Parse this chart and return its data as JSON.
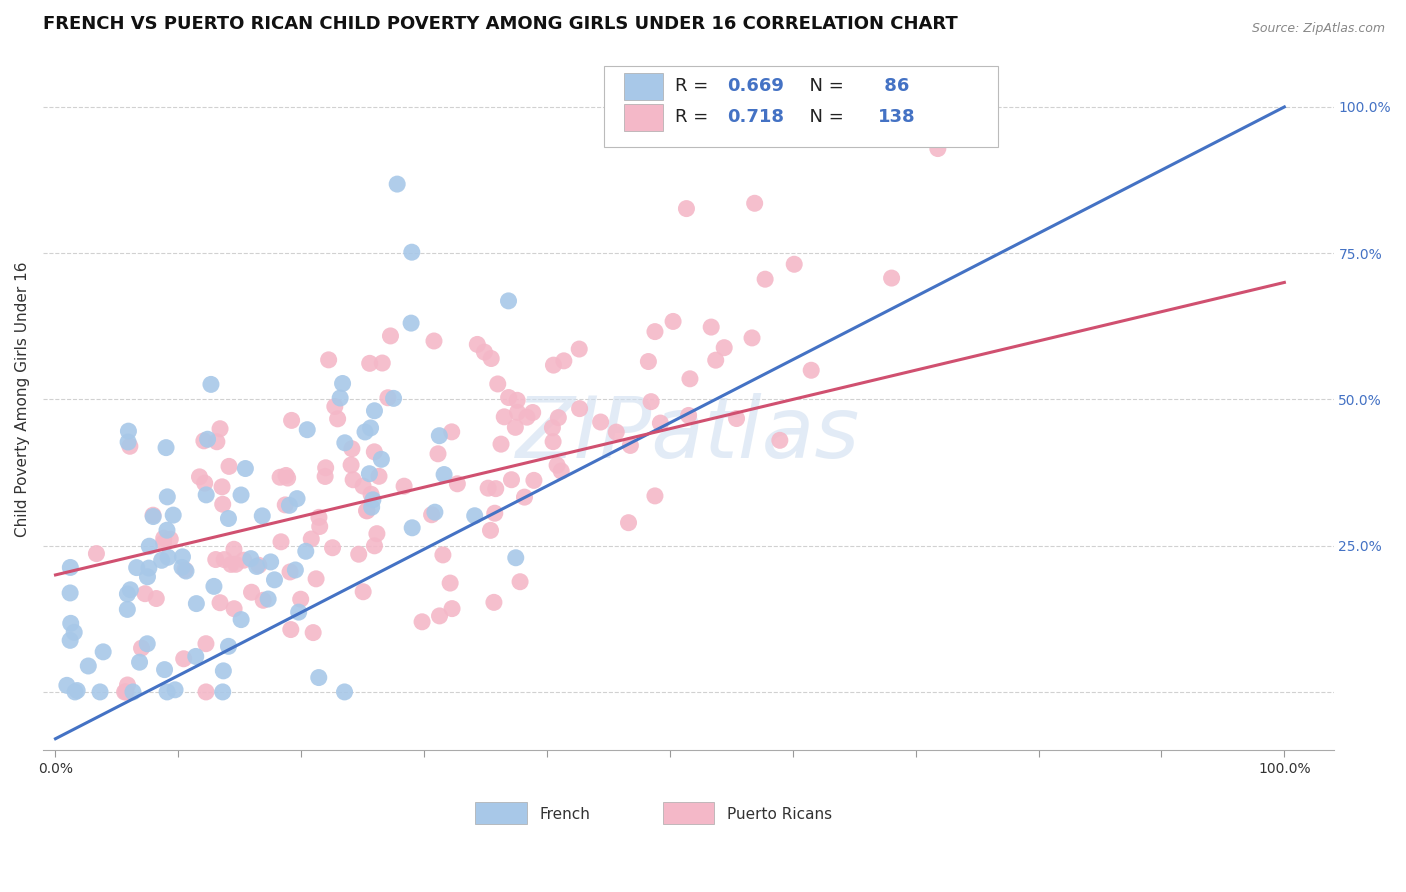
{
  "title": "FRENCH VS PUERTO RICAN CHILD POVERTY AMONG GIRLS UNDER 16 CORRELATION CHART",
  "source": "Source: ZipAtlas.com",
  "ylabel": "Child Poverty Among Girls Under 16",
  "french_R": "0.669",
  "french_N": "86",
  "puerto_rican_R": "0.718",
  "puerto_rican_N": "138",
  "french_color": "#a8c8e8",
  "french_line_color": "#4472C4",
  "puerto_rican_color": "#f4b8c8",
  "puerto_rican_line_color": "#d05070",
  "french_line_x0": 0.0,
  "french_line_y0": -0.08,
  "french_line_x1": 1.0,
  "french_line_y1": 1.0,
  "pr_line_x0": 0.0,
  "pr_line_y0": 0.2,
  "pr_line_x1": 1.0,
  "pr_line_y1": 0.7,
  "xlim_min": -0.01,
  "xlim_max": 1.04,
  "ylim_min": -0.1,
  "ylim_max": 1.1,
  "background_color": "#ffffff",
  "grid_color": "#cccccc",
  "right_tick_color": "#4472C4",
  "title_fontsize": 13,
  "axis_label_fontsize": 11,
  "tick_fontsize": 10,
  "legend_fontsize": 13,
  "watermark_color": "#d0dff0",
  "watermark_alpha": 0.6
}
